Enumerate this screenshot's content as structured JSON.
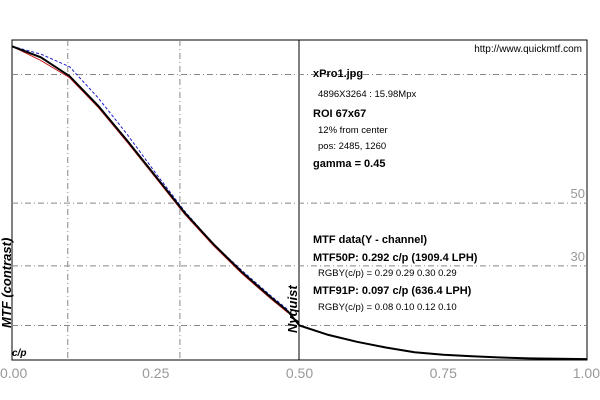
{
  "url": "http://www.quickmtf.com",
  "info": {
    "file": "xPro1.jpg",
    "dims": "4896X3264 : 15.98Mpx",
    "roi": "ROI 67x67",
    "center": "12% from center",
    "pos": "pos: 2485, 1260",
    "gamma": "gamma = 0.45",
    "mtf_title": "MTF data(Y - channel)",
    "mtf50": "MTF50P: 0.292 c/p (1909.4 LPH)",
    "rgby50": "RGBY(c/p) = 0.29 0.29 0.30 0.29",
    "mtf91": "MTF91P: 0.097 c/p (636.4 LPH)",
    "rgby91": "RGBY(c/p) = 0.08 0.10 0.12 0.10"
  },
  "chart_data": {
    "type": "line",
    "title": "",
    "xlabel": "c/p",
    "ylabel": "MTF (contrast)",
    "xlim": [
      0,
      1
    ],
    "ylim": [
      0,
      1.02
    ],
    "x_tick_labels": [
      "0.00",
      "0.25",
      "0.50",
      "0.75",
      "1.00"
    ],
    "x_ticks": [
      0,
      0.25,
      0.5,
      0.75,
      1.0
    ],
    "nyquist_label": "Nyquist",
    "nyquist_x": 0.5,
    "reference_levels": [
      {
        "value": 0.91,
        "label": ""
      },
      {
        "value": 0.5,
        "label": "50"
      },
      {
        "value": 0.3,
        "label": "30"
      },
      {
        "value": 0.11,
        "label": ""
      }
    ],
    "reference_x": [
      0.097,
      0.292
    ],
    "grid": "dash-dot reference lines",
    "series": [
      {
        "color": "#000000",
        "x": [
          0.0,
          0.05,
          0.1,
          0.15,
          0.2,
          0.25,
          0.3,
          0.35,
          0.4,
          0.45,
          0.48,
          0.5,
          0.55,
          0.6,
          0.65,
          0.7,
          0.75,
          0.8,
          0.85,
          0.9,
          0.95,
          1.0
        ],
        "values": [
          1.0,
          0.965,
          0.905,
          0.81,
          0.7,
          0.585,
          0.47,
          0.37,
          0.28,
          0.2,
          0.155,
          0.11,
          0.08,
          0.058,
          0.04,
          0.025,
          0.017,
          0.012,
          0.008,
          0.005,
          0.004,
          0.003
        ]
      },
      {
        "color": "#1a1acc",
        "x": [
          0.0,
          0.05,
          0.1,
          0.15,
          0.2,
          0.25,
          0.3,
          0.35,
          0.4,
          0.45,
          0.48
        ],
        "values": [
          1.0,
          0.975,
          0.935,
          0.835,
          0.72,
          0.595,
          0.475,
          0.37,
          0.285,
          0.205,
          0.16
        ]
      },
      {
        "color": "#cc1a1a",
        "x": [
          0.0,
          0.05,
          0.1,
          0.15,
          0.2,
          0.25,
          0.3,
          0.35,
          0.4,
          0.45,
          0.48
        ],
        "values": [
          1.0,
          0.955,
          0.9,
          0.805,
          0.695,
          0.58,
          0.465,
          0.365,
          0.275,
          0.195,
          0.15
        ]
      }
    ]
  }
}
